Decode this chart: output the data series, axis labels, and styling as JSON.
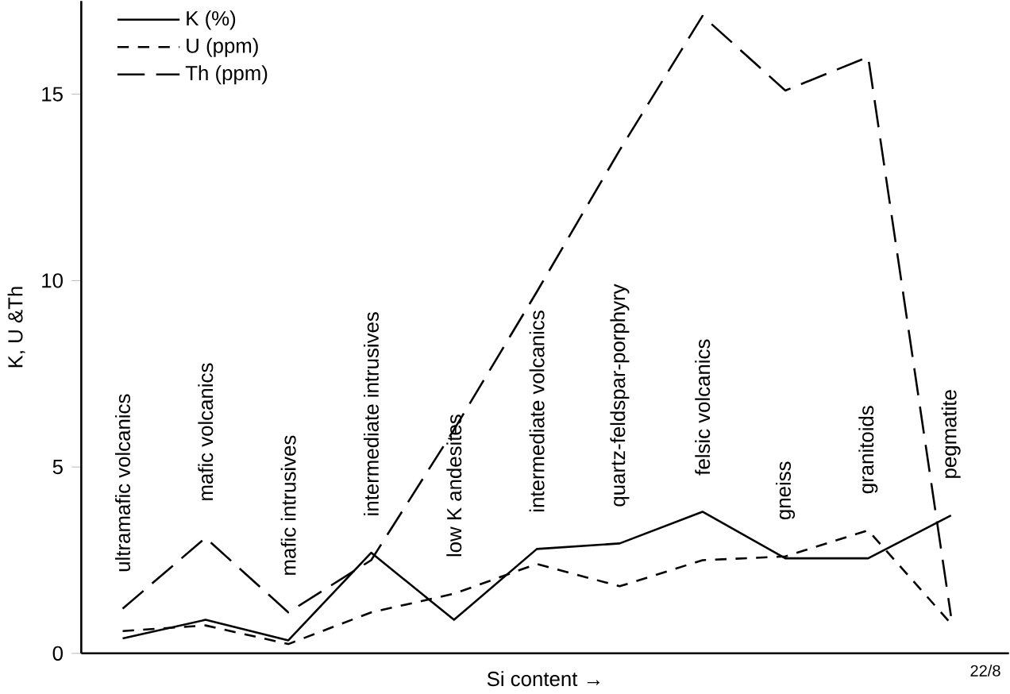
{
  "chart_data": {
    "type": "line",
    "xlabel": "Si content →",
    "ylabel": "K, U &Th",
    "categories": [
      "ultramafic volcanics",
      "mafic volcanics",
      "mafic intrusives",
      "intermediate intrusives",
      "low  K andesites",
      "intermediate volcanics",
      "quartz-feldspar-porphyry",
      "felsic volcanics",
      "gneiss",
      "granitoids",
      "pegmatite"
    ],
    "series": [
      {
        "name": "K (%)",
        "color": "#000000",
        "line_style": "solid",
        "values": [
          0.4,
          0.9,
          0.35,
          2.7,
          0.9,
          2.8,
          2.95,
          3.8,
          2.55,
          2.55,
          3.7
        ]
      },
      {
        "name": "U (ppm)",
        "color": "#000000",
        "line_style": "dashed",
        "values": [
          0.6,
          0.75,
          0.25,
          1.1,
          1.6,
          2.4,
          1.8,
          2.5,
          2.6,
          3.3,
          0.8
        ]
      },
      {
        "name": "Th (ppm)",
        "color": "#000000",
        "line_style": "long dashed",
        "values": [
          1.2,
          3.1,
          1.1,
          2.5,
          6.0,
          9.7,
          13.5,
          17.1,
          15.1,
          16.0,
          1.0
        ]
      }
    ],
    "ylim": [
      0,
      17.5
    ],
    "yticks": [
      0,
      5,
      10,
      15
    ],
    "grid": false,
    "legend": "top left",
    "tick_labels": "y",
    "annotations": [
      "22/8"
    ]
  }
}
